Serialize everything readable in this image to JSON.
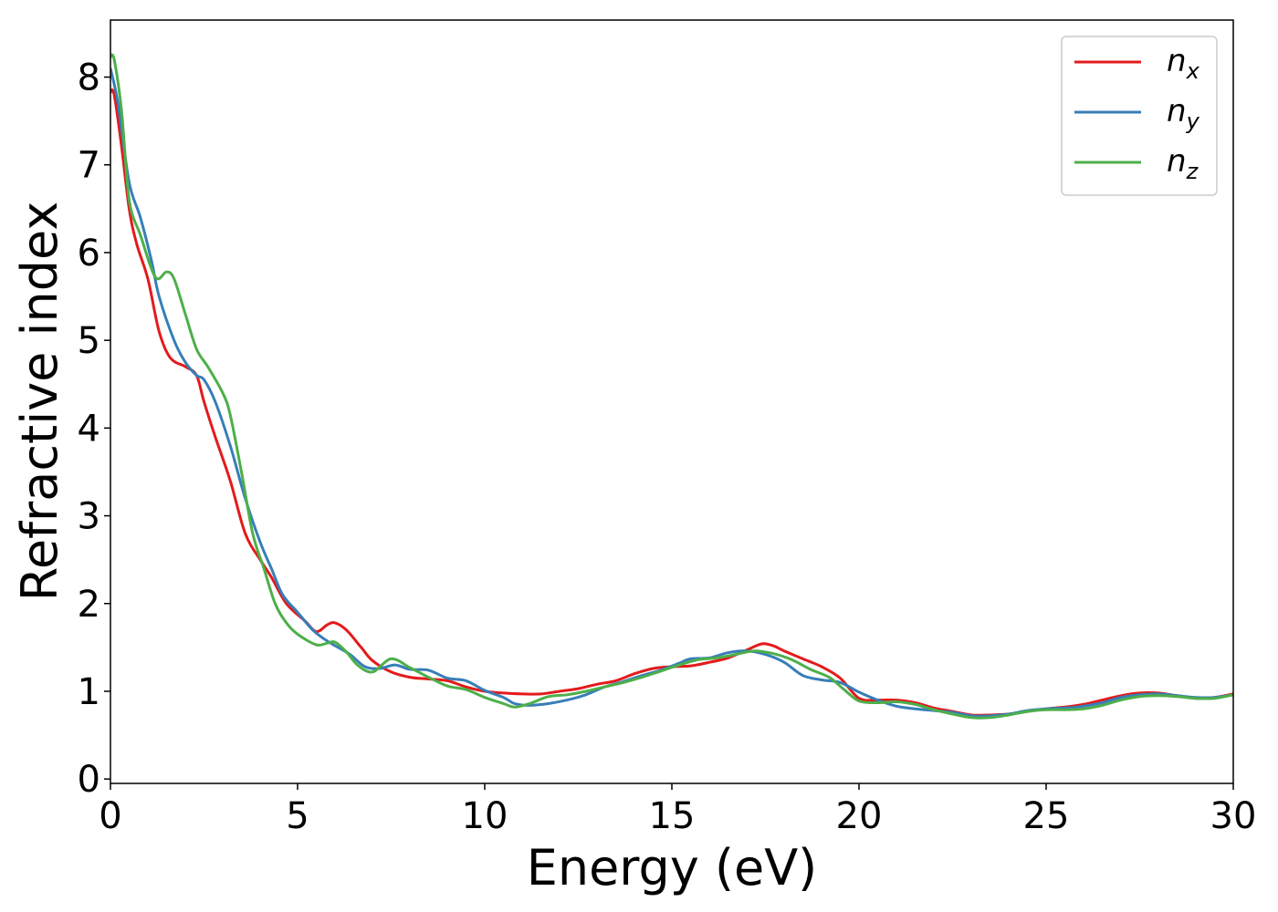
{
  "chart_data": {
    "type": "line",
    "title": "",
    "xlabel": "Energy (eV)",
    "ylabel": "Refractive index",
    "xlim": [
      0,
      30
    ],
    "ylim": [
      -0.05,
      8.65
    ],
    "xticks": [
      0,
      5,
      10,
      15,
      20,
      25,
      30
    ],
    "yticks": [
      0,
      1,
      2,
      3,
      4,
      5,
      6,
      7,
      8
    ],
    "grid": false,
    "legend_position": "top-right",
    "series": [
      {
        "name_main": "n",
        "name_sub": "x",
        "color": "#e41a1c",
        "points": [
          [
            0,
            7.83
          ],
          [
            0.1,
            7.8
          ],
          [
            0.3,
            7.2
          ],
          [
            0.5,
            6.5
          ],
          [
            0.7,
            6.1
          ],
          [
            1.0,
            5.7
          ],
          [
            1.3,
            5.1
          ],
          [
            1.6,
            4.8
          ],
          [
            2.0,
            4.7
          ],
          [
            2.3,
            4.6
          ],
          [
            2.5,
            4.3
          ],
          [
            2.8,
            3.9
          ],
          [
            3.2,
            3.4
          ],
          [
            3.6,
            2.8
          ],
          [
            4.0,
            2.5
          ],
          [
            4.3,
            2.3
          ],
          [
            4.7,
            2.0
          ],
          [
            5.2,
            1.8
          ],
          [
            5.5,
            1.68
          ],
          [
            5.8,
            1.76
          ],
          [
            6.0,
            1.78
          ],
          [
            6.3,
            1.7
          ],
          [
            6.7,
            1.5
          ],
          [
            7.0,
            1.35
          ],
          [
            7.5,
            1.22
          ],
          [
            8.0,
            1.16
          ],
          [
            8.5,
            1.14
          ],
          [
            9.0,
            1.12
          ],
          [
            9.5,
            1.05
          ],
          [
            10.0,
            1.0
          ],
          [
            10.5,
            0.98
          ],
          [
            11.0,
            0.97
          ],
          [
            11.5,
            0.97
          ],
          [
            12.0,
            1.0
          ],
          [
            12.5,
            1.03
          ],
          [
            13.0,
            1.08
          ],
          [
            13.5,
            1.12
          ],
          [
            14.0,
            1.2
          ],
          [
            14.5,
            1.26
          ],
          [
            15.0,
            1.28
          ],
          [
            15.5,
            1.29
          ],
          [
            16.0,
            1.33
          ],
          [
            16.5,
            1.38
          ],
          [
            17.0,
            1.47
          ],
          [
            17.4,
            1.54
          ],
          [
            17.7,
            1.52
          ],
          [
            18.0,
            1.46
          ],
          [
            18.5,
            1.37
          ],
          [
            19.0,
            1.28
          ],
          [
            19.5,
            1.15
          ],
          [
            20.0,
            0.92
          ],
          [
            20.5,
            0.9
          ],
          [
            21.0,
            0.9
          ],
          [
            21.5,
            0.87
          ],
          [
            22.0,
            0.81
          ],
          [
            22.5,
            0.77
          ],
          [
            23.0,
            0.73
          ],
          [
            23.5,
            0.73
          ],
          [
            24.0,
            0.74
          ],
          [
            24.5,
            0.77
          ],
          [
            25.0,
            0.8
          ],
          [
            25.5,
            0.82
          ],
          [
            26.0,
            0.85
          ],
          [
            26.5,
            0.9
          ],
          [
            27.0,
            0.95
          ],
          [
            27.5,
            0.98
          ],
          [
            28.0,
            0.98
          ],
          [
            28.5,
            0.95
          ],
          [
            29.0,
            0.92
          ],
          [
            29.5,
            0.93
          ],
          [
            30.0,
            0.97
          ]
        ]
      },
      {
        "name_main": "n",
        "name_sub": "y",
        "color": "#377eb8",
        "points": [
          [
            0,
            8.1
          ],
          [
            0.2,
            7.7
          ],
          [
            0.5,
            6.8
          ],
          [
            0.8,
            6.4
          ],
          [
            1.1,
            5.9
          ],
          [
            1.3,
            5.5
          ],
          [
            1.7,
            5.0
          ],
          [
            2.0,
            4.75
          ],
          [
            2.3,
            4.6
          ],
          [
            2.5,
            4.55
          ],
          [
            2.8,
            4.3
          ],
          [
            3.2,
            3.8
          ],
          [
            3.6,
            3.2
          ],
          [
            4.0,
            2.7
          ],
          [
            4.3,
            2.4
          ],
          [
            4.6,
            2.1
          ],
          [
            5.0,
            1.9
          ],
          [
            5.4,
            1.7
          ],
          [
            5.7,
            1.6
          ],
          [
            6.0,
            1.52
          ],
          [
            6.4,
            1.42
          ],
          [
            6.8,
            1.28
          ],
          [
            7.2,
            1.26
          ],
          [
            7.6,
            1.3
          ],
          [
            8.0,
            1.25
          ],
          [
            8.5,
            1.24
          ],
          [
            9.0,
            1.15
          ],
          [
            9.5,
            1.12
          ],
          [
            10.0,
            1.01
          ],
          [
            10.5,
            0.93
          ],
          [
            10.8,
            0.86
          ],
          [
            11.2,
            0.84
          ],
          [
            11.7,
            0.86
          ],
          [
            12.2,
            0.9
          ],
          [
            12.7,
            0.96
          ],
          [
            13.2,
            1.05
          ],
          [
            13.7,
            1.11
          ],
          [
            14.2,
            1.18
          ],
          [
            14.7,
            1.24
          ],
          [
            15.2,
            1.32
          ],
          [
            15.5,
            1.37
          ],
          [
            16.0,
            1.38
          ],
          [
            16.5,
            1.44
          ],
          [
            17.0,
            1.46
          ],
          [
            17.5,
            1.42
          ],
          [
            18.0,
            1.33
          ],
          [
            18.5,
            1.18
          ],
          [
            19.0,
            1.13
          ],
          [
            19.5,
            1.1
          ],
          [
            20.0,
            0.99
          ],
          [
            20.5,
            0.9
          ],
          [
            21.0,
            0.83
          ],
          [
            21.5,
            0.8
          ],
          [
            22.0,
            0.78
          ],
          [
            22.5,
            0.76
          ],
          [
            23.0,
            0.72
          ],
          [
            23.5,
            0.72
          ],
          [
            24.0,
            0.74
          ],
          [
            24.5,
            0.78
          ],
          [
            25.0,
            0.8
          ],
          [
            25.5,
            0.81
          ],
          [
            26.0,
            0.83
          ],
          [
            26.5,
            0.87
          ],
          [
            27.0,
            0.93
          ],
          [
            27.5,
            0.96
          ],
          [
            28.0,
            0.97
          ],
          [
            28.5,
            0.95
          ],
          [
            29.0,
            0.93
          ],
          [
            29.5,
            0.93
          ],
          [
            30.0,
            0.96
          ]
        ]
      },
      {
        "name_main": "n",
        "name_sub": "z",
        "color": "#4daf4a",
        "points": [
          [
            0,
            8.23
          ],
          [
            0.1,
            8.2
          ],
          [
            0.3,
            7.6
          ],
          [
            0.5,
            6.6
          ],
          [
            0.8,
            6.2
          ],
          [
            1.2,
            5.72
          ],
          [
            1.5,
            5.78
          ],
          [
            1.7,
            5.7
          ],
          [
            2.0,
            5.3
          ],
          [
            2.3,
            4.9
          ],
          [
            2.6,
            4.7
          ],
          [
            3.0,
            4.4
          ],
          [
            3.2,
            4.15
          ],
          [
            3.5,
            3.5
          ],
          [
            3.8,
            2.8
          ],
          [
            4.1,
            2.4
          ],
          [
            4.4,
            2.0
          ],
          [
            4.7,
            1.78
          ],
          [
            5.0,
            1.65
          ],
          [
            5.5,
            1.53
          ],
          [
            5.8,
            1.55
          ],
          [
            6.0,
            1.56
          ],
          [
            6.3,
            1.45
          ],
          [
            6.6,
            1.3
          ],
          [
            7.0,
            1.22
          ],
          [
            7.5,
            1.37
          ],
          [
            8.0,
            1.27
          ],
          [
            8.5,
            1.16
          ],
          [
            9.0,
            1.06
          ],
          [
            9.5,
            1.02
          ],
          [
            10.0,
            0.93
          ],
          [
            10.5,
            0.86
          ],
          [
            10.8,
            0.82
          ],
          [
            11.2,
            0.86
          ],
          [
            11.7,
            0.94
          ],
          [
            12.2,
            0.96
          ],
          [
            12.7,
            1.0
          ],
          [
            13.2,
            1.05
          ],
          [
            13.7,
            1.1
          ],
          [
            14.2,
            1.16
          ],
          [
            14.7,
            1.23
          ],
          [
            15.2,
            1.3
          ],
          [
            15.7,
            1.36
          ],
          [
            16.2,
            1.38
          ],
          [
            16.7,
            1.42
          ],
          [
            17.2,
            1.46
          ],
          [
            17.7,
            1.43
          ],
          [
            18.2,
            1.36
          ],
          [
            18.7,
            1.25
          ],
          [
            19.2,
            1.16
          ],
          [
            19.6,
            1.02
          ],
          [
            20.0,
            0.89
          ],
          [
            20.5,
            0.87
          ],
          [
            21.0,
            0.88
          ],
          [
            21.5,
            0.85
          ],
          [
            22.0,
            0.79
          ],
          [
            22.5,
            0.74
          ],
          [
            23.0,
            0.7
          ],
          [
            23.5,
            0.7
          ],
          [
            24.0,
            0.73
          ],
          [
            24.5,
            0.77
          ],
          [
            25.0,
            0.79
          ],
          [
            25.5,
            0.79
          ],
          [
            26.0,
            0.8
          ],
          [
            26.5,
            0.84
          ],
          [
            27.0,
            0.9
          ],
          [
            27.5,
            0.94
          ],
          [
            28.0,
            0.95
          ],
          [
            28.5,
            0.94
          ],
          [
            29.0,
            0.92
          ],
          [
            29.5,
            0.92
          ],
          [
            30.0,
            0.96
          ]
        ]
      }
    ]
  }
}
